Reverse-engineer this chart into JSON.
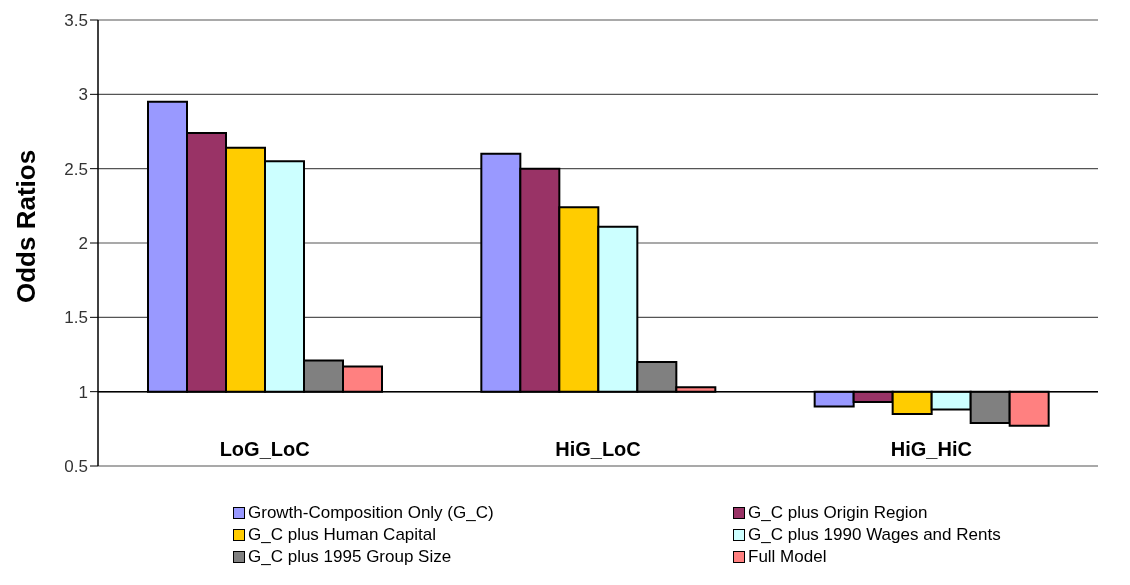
{
  "chart_data": {
    "type": "bar",
    "ylabel": "Odds Ratios",
    "categories": [
      "LoG_LoC",
      "HiG_LoC",
      "HiG_HiC"
    ],
    "series": [
      {
        "name": "Growth-Composition Only (G_C)",
        "color": "#9999ff",
        "base": [
          1,
          1,
          1
        ],
        "values": [
          1.95,
          1.6,
          -0.1
        ]
      },
      {
        "name": "G_C plus Origin Region",
        "color": "#993366",
        "base": [
          1,
          1,
          1
        ],
        "values": [
          1.74,
          1.5,
          -0.07
        ]
      },
      {
        "name": "G_C plus Human Capital",
        "color": "#ffcc00",
        "base": [
          1,
          1,
          1
        ],
        "values": [
          1.64,
          1.24,
          -0.15
        ]
      },
      {
        "name": "G_C plus 1990 Wages and Rents",
        "color": "#ccffff",
        "base": [
          1,
          1,
          1
        ],
        "values": [
          1.55,
          1.11,
          -0.12
        ]
      },
      {
        "name": "G_C plus 1995 Group Size",
        "color": "#808080",
        "base": [
          1,
          1,
          1
        ],
        "values": [
          0.21,
          0.2,
          -0.21
        ]
      },
      {
        "name": "Full Model",
        "color": "#ff8080",
        "base": [
          1,
          1,
          1
        ],
        "values": [
          0.17,
          0.03,
          -0.23
        ]
      }
    ],
    "ylim": [
      0.5,
      3.5
    ],
    "yticks": [
      0.5,
      1,
      1.5,
      2,
      2.5,
      3,
      3.5
    ],
    "grid": "y",
    "legend": "bottom",
    "ref_lines": [
      {
        "axis": "y",
        "value": 1,
        "color": "#000000"
      }
    ]
  }
}
